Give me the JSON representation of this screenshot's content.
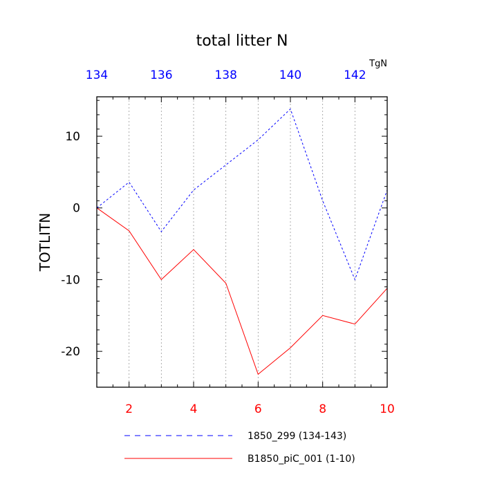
{
  "chart_data": {
    "type": "line",
    "title": "total litter N",
    "ylabel": "TOTLITN",
    "units": "TgN",
    "bottom_axis": {
      "xlim": [
        1,
        10
      ],
      "ticks": [
        2,
        4,
        6,
        8,
        10
      ],
      "tick_color": "#ff0000"
    },
    "top_axis": {
      "xlim": [
        134,
        143
      ],
      "ticks": [
        134,
        136,
        138,
        140,
        142
      ],
      "tick_color": "#0000ff"
    },
    "ylim": [
      -25,
      15.5
    ],
    "y_ticks": [
      -20,
      -10,
      0,
      10
    ],
    "vertical_gridlines": [
      2,
      3,
      4,
      5,
      6,
      7,
      8,
      9
    ],
    "series": [
      {
        "name": "1850_299 (134-143)",
        "axis": "top",
        "color": "#0000ff",
        "dash": "dashed",
        "x": [
          134,
          135,
          136,
          137,
          138,
          139,
          140,
          141,
          142,
          143
        ],
        "values": [
          0,
          3.6,
          -3.3,
          2.5,
          6.0,
          9.5,
          13.8,
          1.0,
          -10.0,
          2.5
        ]
      },
      {
        "name": "B1850_piC_001 (1-10)",
        "axis": "bottom",
        "color": "#ff0000",
        "dash": "solid",
        "x": [
          1,
          2,
          3,
          4,
          5,
          6,
          7,
          8,
          9,
          10
        ],
        "values": [
          0,
          -3.2,
          -10.0,
          -5.8,
          -10.5,
          -23.2,
          -19.5,
          -15.0,
          -16.2,
          -11.2
        ]
      }
    ],
    "legend_position": "bottom"
  }
}
